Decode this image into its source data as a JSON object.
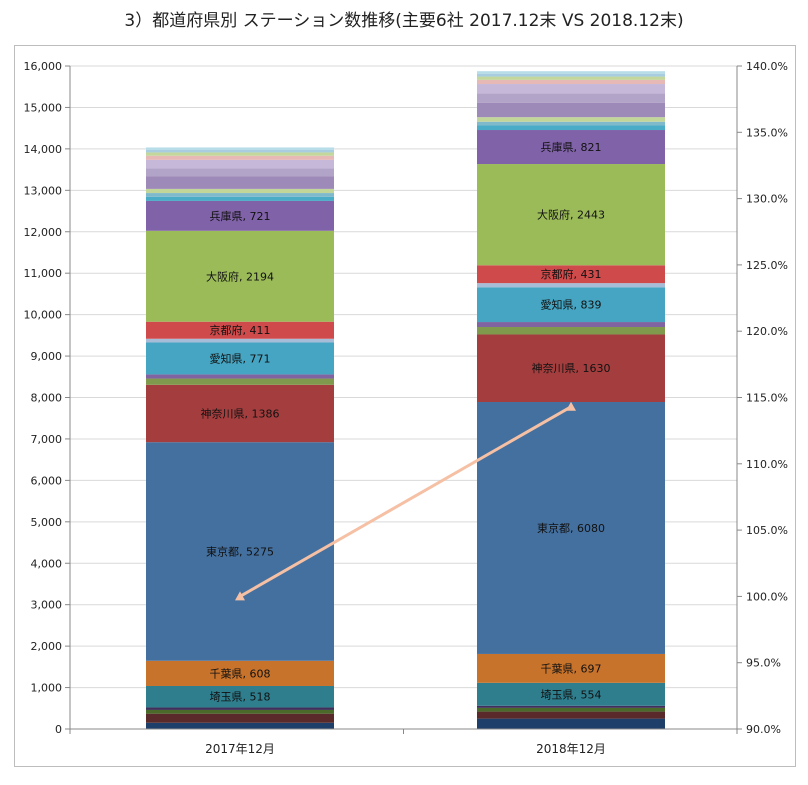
{
  "title": "3）都道府県別 ステーション数推移(主要6社 2017.12末 VS 2018.12末)",
  "chart_data": {
    "type": "bar",
    "stacked": true,
    "categories": [
      "2017年12月",
      "2018年12月"
    ],
    "ylim": [
      0,
      16000
    ],
    "y_ticks": [
      "0",
      "1,000",
      "2,000",
      "3,000",
      "4,000",
      "5,000",
      "6,000",
      "7,000",
      "8,000",
      "9,000",
      "10,000",
      "11,000",
      "12,000",
      "13,000",
      "14,000",
      "15,000",
      "16,000"
    ],
    "y2lim": [
      0.9,
      1.4
    ],
    "y2_ticks": [
      "90.0%",
      "95.0%",
      "100.0%",
      "105.0%",
      "110.0%",
      "115.0%",
      "120.0%",
      "125.0%",
      "130.0%",
      "135.0%",
      "140.0%"
    ],
    "grid": "horizontal",
    "series": [
      {
        "values": [
          150,
          250
        ],
        "color": "#1f3f6b"
      },
      {
        "values": [
          220,
          170
        ],
        "color": "#5a2a2a"
      },
      {
        "values": [
          90,
          90
        ],
        "color": "#4a6a2a"
      },
      {
        "values": [
          60,
          50
        ],
        "color": "#3f2f5a"
      },
      {
        "name": "埼玉県",
        "values": [
          518,
          554
        ],
        "color": "#2e7e8e",
        "label": true
      },
      {
        "name": "千葉県",
        "values": [
          608,
          697
        ],
        "color": "#c8732c",
        "label": true
      },
      {
        "name": "東京都",
        "values": [
          5275,
          6080
        ],
        "color": "#44709f",
        "label": true
      },
      {
        "name": "神奈川県",
        "values": [
          1386,
          1630
        ],
        "color": "#a43e3e",
        "label": true
      },
      {
        "values": [
          150,
          180
        ],
        "color": "#7f9a4c"
      },
      {
        "values": [
          100,
          120
        ],
        "color": "#8064a2"
      },
      {
        "name": "愛知県",
        "values": [
          771,
          839
        ],
        "color": "#45a5c2",
        "label": true
      },
      {
        "values": [
          90,
          100
        ],
        "color": "#a7bcd7"
      },
      {
        "name": "京都府",
        "values": [
          411,
          431
        ],
        "color": "#cf4b4b",
        "label": true
      },
      {
        "name": "大阪府",
        "values": [
          2194,
          2443
        ],
        "color": "#9bbb59",
        "label": true
      },
      {
        "name": "兵庫県",
        "values": [
          721,
          821
        ],
        "color": "#8062a8",
        "label": true
      },
      {
        "values": [
          100,
          110
        ],
        "color": "#4aacc6"
      },
      {
        "values": [
          90,
          90
        ],
        "color": "#7fb9cc"
      },
      {
        "values": [
          100,
          110
        ],
        "color": "#c2d69a"
      },
      {
        "values": [
          300,
          350
        ],
        "color": "#9e8ab8"
      },
      {
        "values": [
          200,
          220
        ],
        "color": "#b2a3c8"
      },
      {
        "values": [
          200,
          230
        ],
        "color": "#c6b8d8"
      },
      {
        "values": [
          100,
          100
        ],
        "color": "#e6b9b7"
      },
      {
        "values": [
          80,
          80
        ],
        "color": "#c3d69b"
      },
      {
        "values": [
          60,
          70
        ],
        "color": "#a8cde0"
      },
      {
        "values": [
          60,
          60
        ],
        "color": "#b7dde8"
      }
    ],
    "ratio_line": {
      "values": [
        1.0,
        1.143
      ],
      "color": "#f5c0a4"
    }
  }
}
